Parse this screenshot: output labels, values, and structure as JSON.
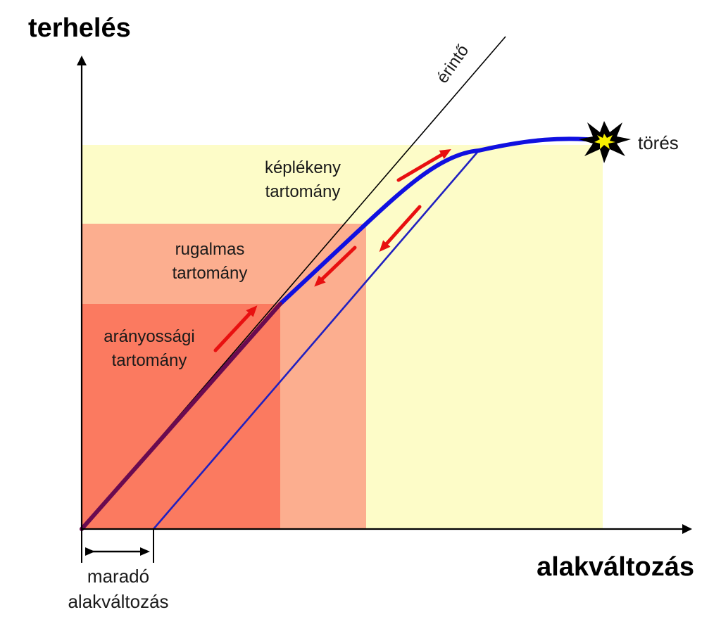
{
  "axes": {
    "y_title": "terhelés",
    "x_title": "alakváltozás"
  },
  "regions": {
    "proportional": {
      "line1": "arányossági",
      "line2": "tartomány"
    },
    "elastic": {
      "line1": "rugalmas",
      "line2": "tartomány"
    },
    "plastic": {
      "line1": "képlékeny",
      "line2": "tartomány"
    }
  },
  "tangent_label": "érintő",
  "fracture_label": "törés",
  "residual": {
    "line1": "maradó",
    "line2": "alakváltozás"
  },
  "colors": {
    "proportional": "#fb7a60",
    "elastic": "#fcae8f",
    "plastic": "#fdfcc8",
    "curve": "#1010e0",
    "proportional_curve": "#6a0a50",
    "unload_line": "#2020c0",
    "arrow": "#e81010",
    "tangent": "#000000",
    "burst_fill": "#000000",
    "burst_core": "#f7f000"
  }
}
